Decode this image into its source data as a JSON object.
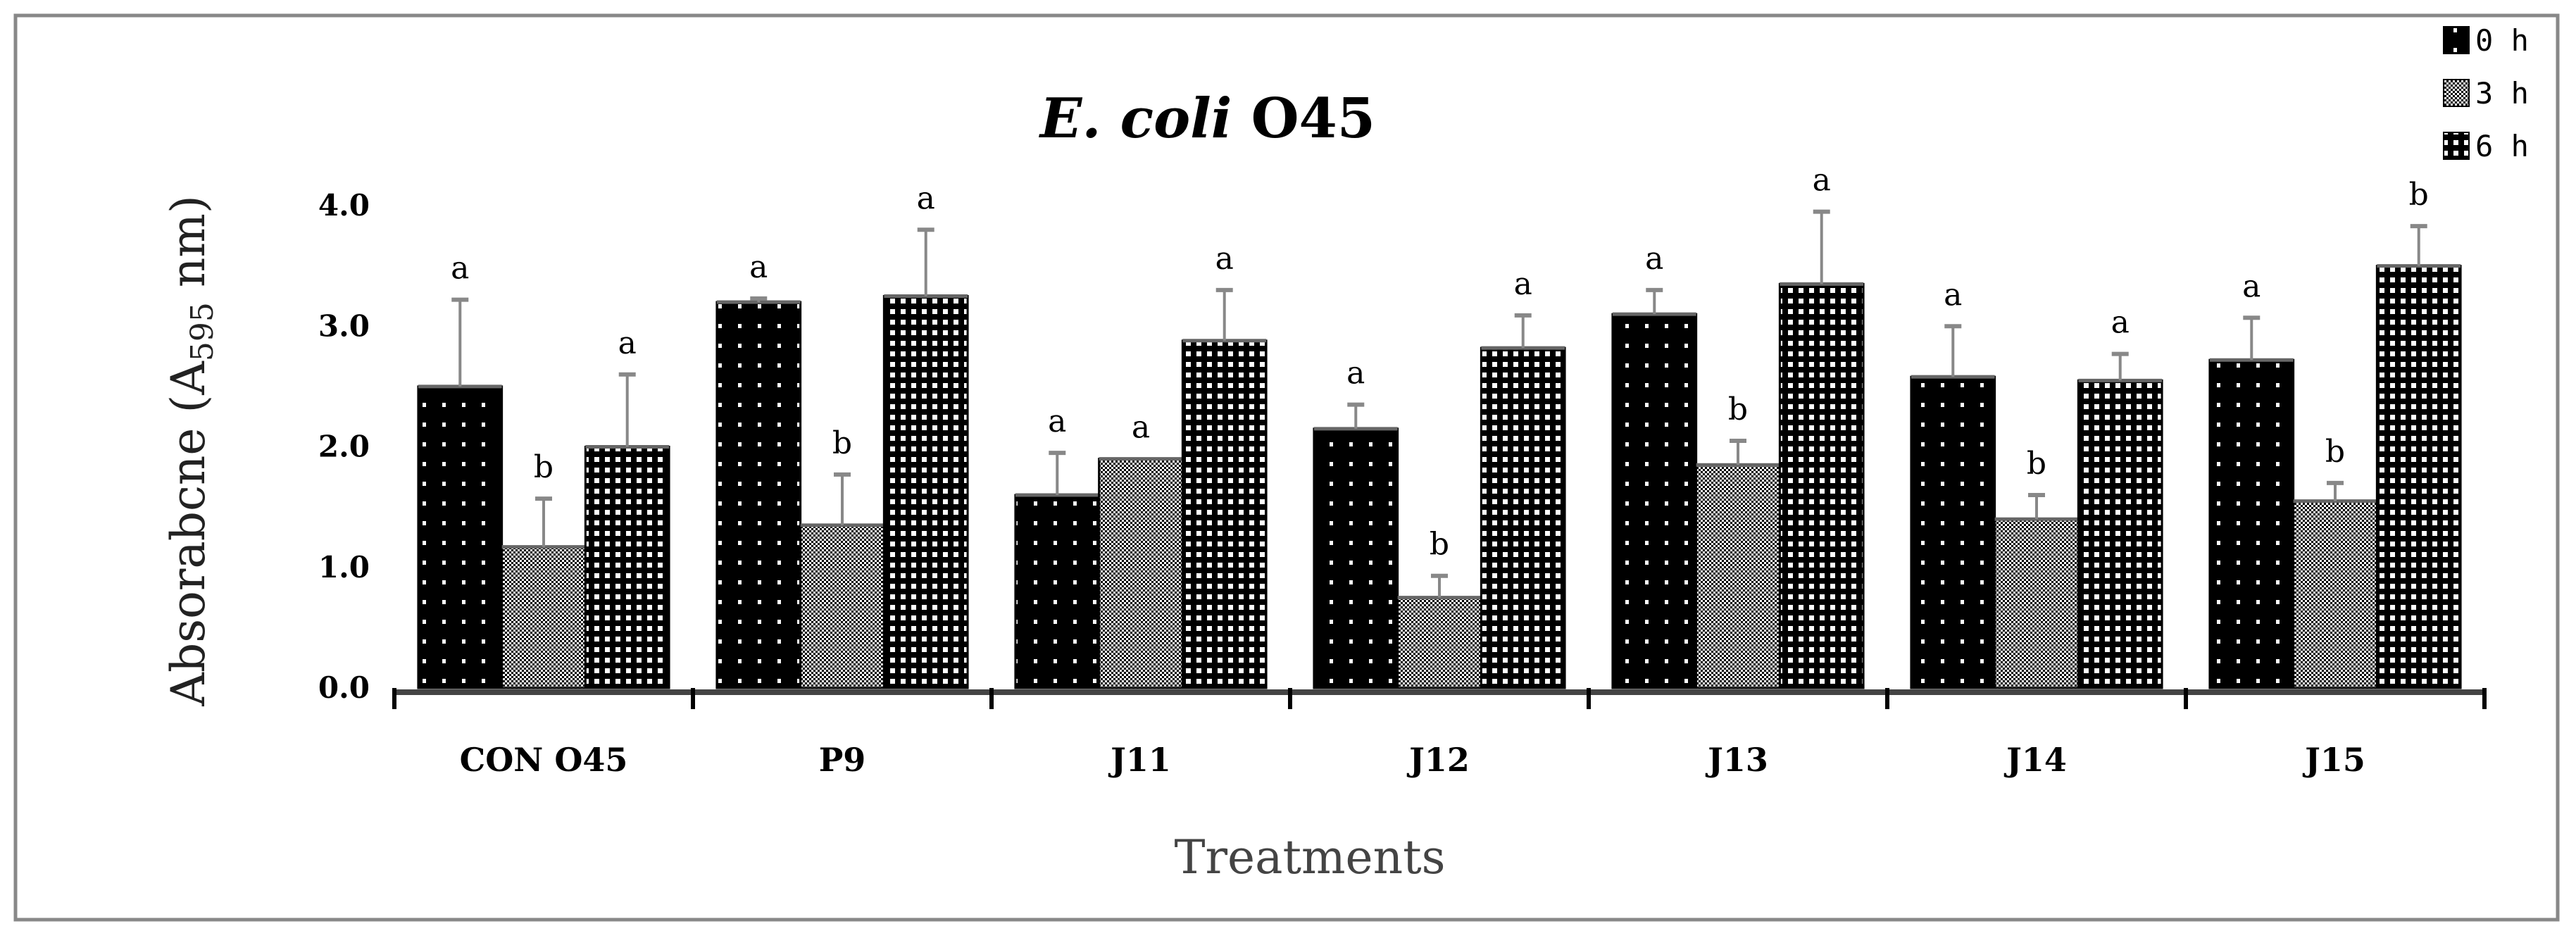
{
  "chart_data": {
    "type": "bar",
    "title_italic": "E. coli",
    "title_rest": " O45",
    "ylabel_main": "Absorabcne (A",
    "ylabel_sub": "595",
    "ylabel_tail": " nm)",
    "xlabel": "Treatments",
    "ylim": [
      0,
      4.0
    ],
    "yticks": [
      "0.0",
      "1.0",
      "2.0",
      "3.0",
      "4.0"
    ],
    "categories": [
      "CON O45",
      "P9",
      "J11",
      "J12",
      "J13",
      "J14",
      "J15"
    ],
    "legend_position": "top-right",
    "series": [
      {
        "name": "0 h",
        "values": [
          2.5,
          3.2,
          1.6,
          2.15,
          3.1,
          2.58,
          2.72
        ],
        "errors": [
          0.72,
          0.03,
          0.35,
          0.2,
          0.2,
          0.42,
          0.35
        ],
        "letters": [
          "a",
          "a",
          "a",
          "a",
          "a",
          "a",
          "a"
        ]
      },
      {
        "name": "3 h",
        "values": [
          1.17,
          1.35,
          1.9,
          0.75,
          1.85,
          1.4,
          1.55
        ],
        "errors": [
          0.4,
          0.42,
          0.0,
          0.18,
          0.2,
          0.2,
          0.15
        ],
        "letters": [
          "b",
          "b",
          "a",
          "b",
          "b",
          "b",
          "b"
        ]
      },
      {
        "name": "6 h",
        "values": [
          2.0,
          3.25,
          2.88,
          2.82,
          3.35,
          2.55,
          3.5
        ],
        "errors": [
          0.6,
          0.55,
          0.42,
          0.27,
          0.6,
          0.22,
          0.33
        ],
        "letters": [
          "a",
          "a",
          "a",
          "a",
          "a",
          "a",
          "b"
        ]
      }
    ]
  }
}
